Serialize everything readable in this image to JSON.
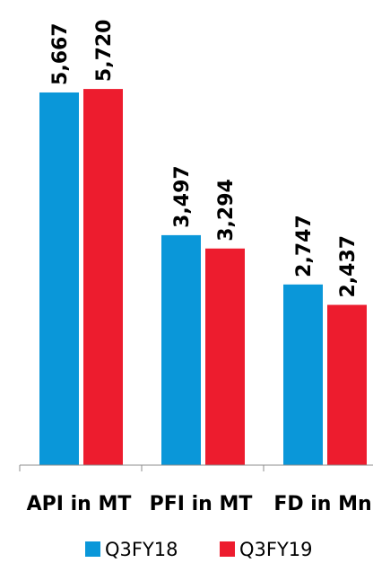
{
  "chart_data": {
    "type": "bar",
    "categories": [
      "API in MT",
      "PFI in MT",
      "FD in Mn"
    ],
    "series": [
      {
        "name": "Q3FY18",
        "values": [
          5667,
          3497,
          2747
        ],
        "labels": [
          "5,667",
          "3,497",
          "2,747"
        ],
        "color": "#0a97d9"
      },
      {
        "name": "Q3FY19",
        "values": [
          5720,
          3294,
          2437
        ],
        "labels": [
          "5,720",
          "3,294",
          "2,437"
        ],
        "color": "#ed1c2e"
      }
    ],
    "ylim": [
      0,
      6800
    ],
    "grid": false,
    "legend_position": "bottom"
  }
}
